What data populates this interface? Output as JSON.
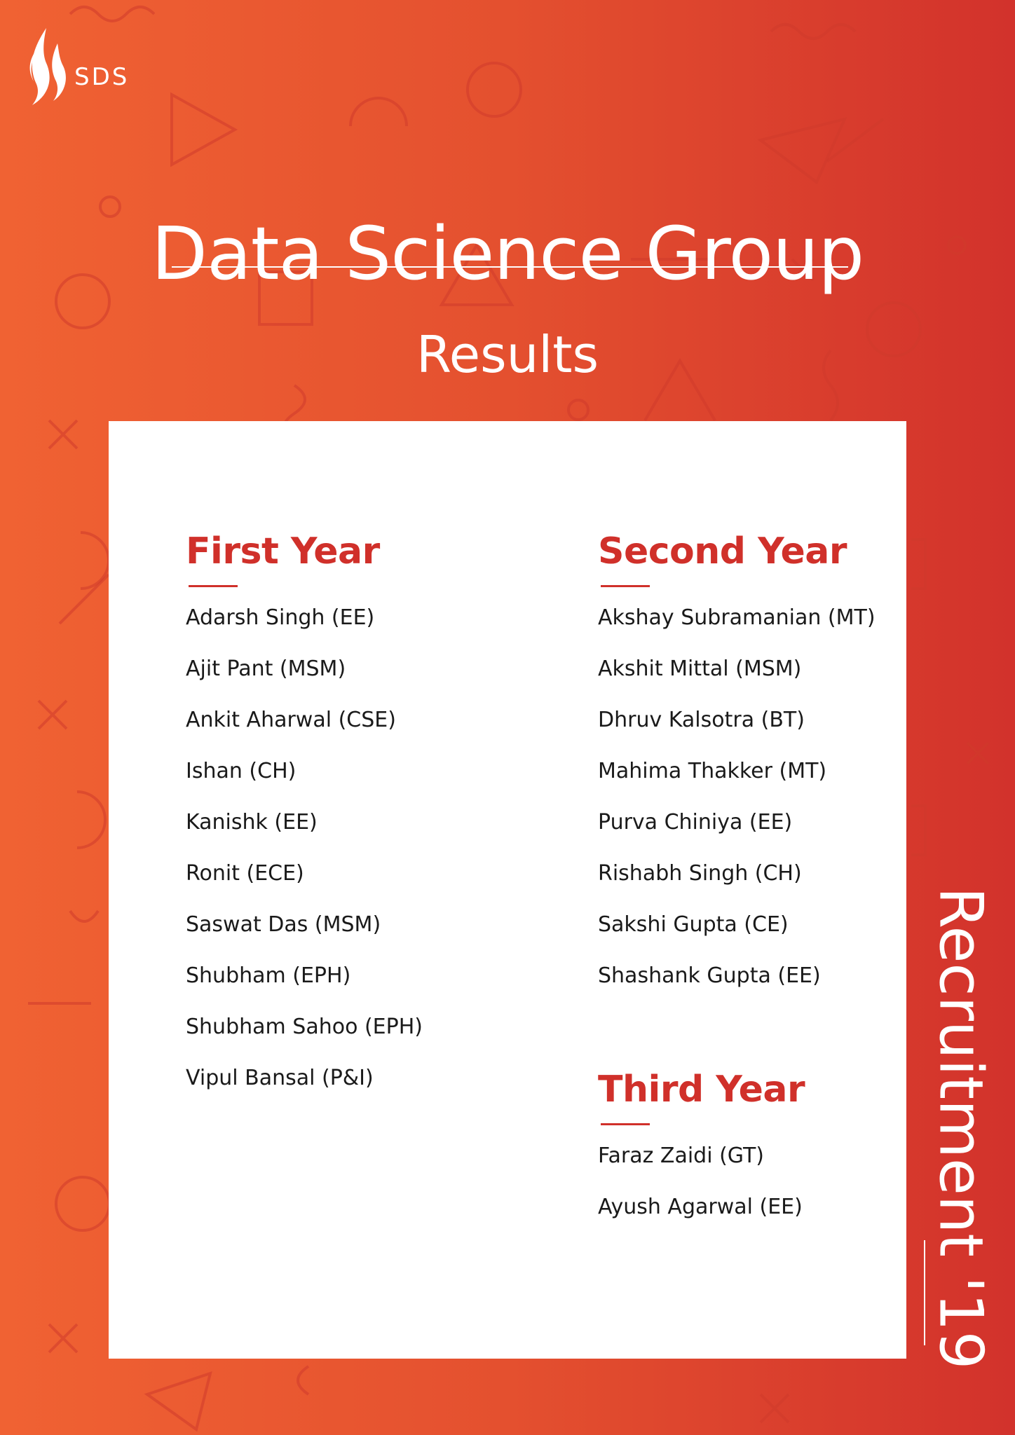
{
  "logo": {
    "text": "SDS",
    "icon": "flame-icon"
  },
  "title": "Data Science Group",
  "subtitle": "Results",
  "side_label": "Recruitment '19",
  "colors": {
    "accent": "#d0302a",
    "background_start": "#f06233",
    "background_end": "#d2322c",
    "card": "#ffffff"
  },
  "sections": {
    "first_year": {
      "heading": "First Year",
      "names": [
        "Adarsh Singh (EE)",
        "Ajit Pant (MSM)",
        "Ankit Aharwal (CSE)",
        "Ishan (CH)",
        "Kanishk (EE)",
        "Ronit (ECE)",
        "Saswat Das (MSM)",
        "Shubham (EPH)",
        "Shubham Sahoo (EPH)",
        "Vipul Bansal (P&I)"
      ]
    },
    "second_year": {
      "heading": "Second Year",
      "names": [
        "Akshay Subramanian (MT)",
        "Akshit Mittal (MSM)",
        "Dhruv Kalsotra (BT)",
        "Mahima Thakker (MT)",
        "Purva Chiniya (EE)",
        "Rishabh Singh (CH)",
        "Sakshi Gupta (CE)",
        "Shashank Gupta (EE)"
      ]
    },
    "third_year": {
      "heading": "Third Year",
      "names": [
        "Faraz Zaidi (GT)",
        "Ayush Agarwal (EE)"
      ]
    }
  }
}
